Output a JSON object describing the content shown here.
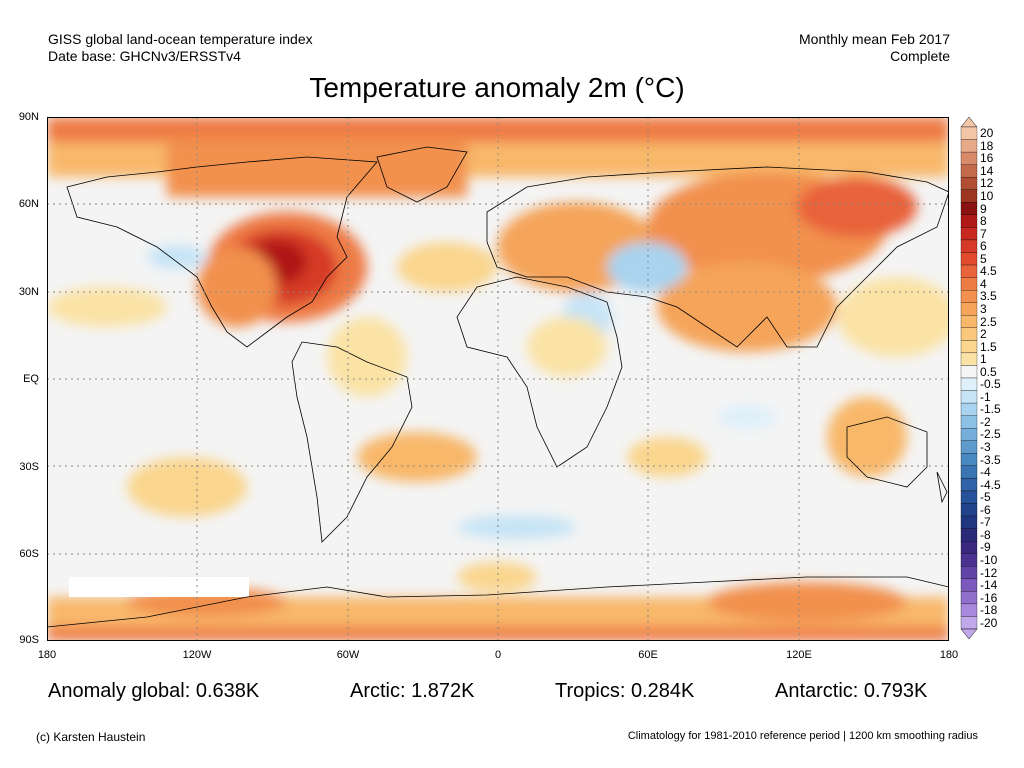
{
  "header": {
    "left_line1": "GISS global land-ocean temperature index",
    "left_line2": "Date base: GHCNv3/ERSSTv4",
    "right_line1": "Monthly mean Feb 2017",
    "right_line2": "Complete"
  },
  "title": "Temperature anomaly 2m (°C)",
  "axes": {
    "lat_labels": [
      "90N",
      "60N",
      "30N",
      "EQ",
      "30S",
      "60S",
      "90S"
    ],
    "lon_labels": [
      "180",
      "120W",
      "60W",
      "0",
      "60E",
      "120E",
      "180"
    ]
  },
  "colorbar": {
    "labels": [
      "20",
      "18",
      "16",
      "14",
      "12",
      "10",
      "9",
      "8",
      "7",
      "6",
      "5",
      "4.5",
      "4",
      "3.5",
      "3",
      "2.5",
      "2",
      "1.5",
      "1",
      "0.5",
      "-0.5",
      "-1",
      "-1.5",
      "-2",
      "-2.5",
      "-3",
      "-3.5",
      "-4",
      "-4.5",
      "-5",
      "-6",
      "-7",
      "-8",
      "-9",
      "-10",
      "-12",
      "-14",
      "-16",
      "-18",
      "-20"
    ],
    "colors": [
      "#f3c6a8",
      "#e8a988",
      "#d88a6a",
      "#c46a4a",
      "#b04e32",
      "#9c3620",
      "#8a1210",
      "#b01818",
      "#c82820",
      "#d63a28",
      "#e24a2c",
      "#e8623a",
      "#ee7a44",
      "#f2904e",
      "#f5a45a",
      "#f8b86a",
      "#f9c87c",
      "#fad68e",
      "#fbe3a6",
      "#f5f5f5",
      "#dff0fb",
      "#c6e4f6",
      "#a9d3ee",
      "#8cc0e4",
      "#74aed9",
      "#5e9bcc",
      "#4a88c0",
      "#3a74b3",
      "#2f62a6",
      "#27519a",
      "#20438c",
      "#1f3680",
      "#2a2a78",
      "#3a2880",
      "#4c3290",
      "#6244a6",
      "#7a58bc",
      "#9070cc",
      "#a888dc",
      "#c0a8ea"
    ]
  },
  "stats": {
    "global": "Anomaly global: 0.638K",
    "arctic": "Arctic: 1.872K",
    "tropics": "Tropics: 0.284K",
    "antarctic": "Antarctic: 0.793K"
  },
  "footer": {
    "left": "(c) Karsten Haustein",
    "right": "Climatology for 1981-2010 reference period | 1200 km smoothing radius"
  }
}
